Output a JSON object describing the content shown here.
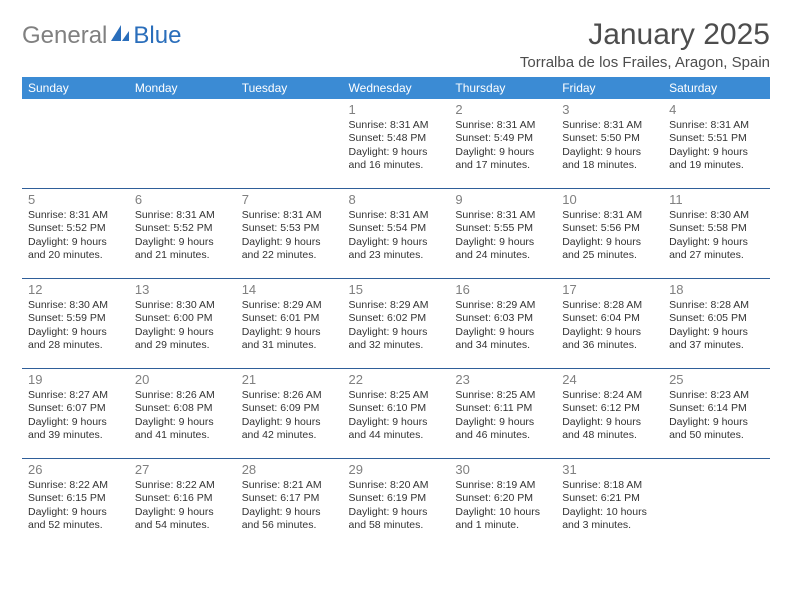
{
  "logo": {
    "text1": "General",
    "text2": "Blue"
  },
  "header": {
    "month_title": "January 2025",
    "location": "Torralba de los Frailes, Aragon, Spain"
  },
  "colors": {
    "header_bg": "#3b8bd4",
    "header_fg": "#ffffff",
    "rule": "#2f5f99",
    "daynum": "#808080",
    "body_text": "#333333",
    "logo_gray": "#808080",
    "logo_blue": "#2a6ebb"
  },
  "day_labels": [
    "Sunday",
    "Monday",
    "Tuesday",
    "Wednesday",
    "Thursday",
    "Friday",
    "Saturday"
  ],
  "weeks": [
    [
      null,
      null,
      null,
      {
        "n": "1",
        "sr": "8:31 AM",
        "ss": "5:48 PM",
        "dl": "9 hours and 16 minutes."
      },
      {
        "n": "2",
        "sr": "8:31 AM",
        "ss": "5:49 PM",
        "dl": "9 hours and 17 minutes."
      },
      {
        "n": "3",
        "sr": "8:31 AM",
        "ss": "5:50 PM",
        "dl": "9 hours and 18 minutes."
      },
      {
        "n": "4",
        "sr": "8:31 AM",
        "ss": "5:51 PM",
        "dl": "9 hours and 19 minutes."
      }
    ],
    [
      {
        "n": "5",
        "sr": "8:31 AM",
        "ss": "5:52 PM",
        "dl": "9 hours and 20 minutes."
      },
      {
        "n": "6",
        "sr": "8:31 AM",
        "ss": "5:52 PM",
        "dl": "9 hours and 21 minutes."
      },
      {
        "n": "7",
        "sr": "8:31 AM",
        "ss": "5:53 PM",
        "dl": "9 hours and 22 minutes."
      },
      {
        "n": "8",
        "sr": "8:31 AM",
        "ss": "5:54 PM",
        "dl": "9 hours and 23 minutes."
      },
      {
        "n": "9",
        "sr": "8:31 AM",
        "ss": "5:55 PM",
        "dl": "9 hours and 24 minutes."
      },
      {
        "n": "10",
        "sr": "8:31 AM",
        "ss": "5:56 PM",
        "dl": "9 hours and 25 minutes."
      },
      {
        "n": "11",
        "sr": "8:30 AM",
        "ss": "5:58 PM",
        "dl": "9 hours and 27 minutes."
      }
    ],
    [
      {
        "n": "12",
        "sr": "8:30 AM",
        "ss": "5:59 PM",
        "dl": "9 hours and 28 minutes."
      },
      {
        "n": "13",
        "sr": "8:30 AM",
        "ss": "6:00 PM",
        "dl": "9 hours and 29 minutes."
      },
      {
        "n": "14",
        "sr": "8:29 AM",
        "ss": "6:01 PM",
        "dl": "9 hours and 31 minutes."
      },
      {
        "n": "15",
        "sr": "8:29 AM",
        "ss": "6:02 PM",
        "dl": "9 hours and 32 minutes."
      },
      {
        "n": "16",
        "sr": "8:29 AM",
        "ss": "6:03 PM",
        "dl": "9 hours and 34 minutes."
      },
      {
        "n": "17",
        "sr": "8:28 AM",
        "ss": "6:04 PM",
        "dl": "9 hours and 36 minutes."
      },
      {
        "n": "18",
        "sr": "8:28 AM",
        "ss": "6:05 PM",
        "dl": "9 hours and 37 minutes."
      }
    ],
    [
      {
        "n": "19",
        "sr": "8:27 AM",
        "ss": "6:07 PM",
        "dl": "9 hours and 39 minutes."
      },
      {
        "n": "20",
        "sr": "8:26 AM",
        "ss": "6:08 PM",
        "dl": "9 hours and 41 minutes."
      },
      {
        "n": "21",
        "sr": "8:26 AM",
        "ss": "6:09 PM",
        "dl": "9 hours and 42 minutes."
      },
      {
        "n": "22",
        "sr": "8:25 AM",
        "ss": "6:10 PM",
        "dl": "9 hours and 44 minutes."
      },
      {
        "n": "23",
        "sr": "8:25 AM",
        "ss": "6:11 PM",
        "dl": "9 hours and 46 minutes."
      },
      {
        "n": "24",
        "sr": "8:24 AM",
        "ss": "6:12 PM",
        "dl": "9 hours and 48 minutes."
      },
      {
        "n": "25",
        "sr": "8:23 AM",
        "ss": "6:14 PM",
        "dl": "9 hours and 50 minutes."
      }
    ],
    [
      {
        "n": "26",
        "sr": "8:22 AM",
        "ss": "6:15 PM",
        "dl": "9 hours and 52 minutes."
      },
      {
        "n": "27",
        "sr": "8:22 AM",
        "ss": "6:16 PM",
        "dl": "9 hours and 54 minutes."
      },
      {
        "n": "28",
        "sr": "8:21 AM",
        "ss": "6:17 PM",
        "dl": "9 hours and 56 minutes."
      },
      {
        "n": "29",
        "sr": "8:20 AM",
        "ss": "6:19 PM",
        "dl": "9 hours and 58 minutes."
      },
      {
        "n": "30",
        "sr": "8:19 AM",
        "ss": "6:20 PM",
        "dl": "10 hours and 1 minute."
      },
      {
        "n": "31",
        "sr": "8:18 AM",
        "ss": "6:21 PM",
        "dl": "10 hours and 3 minutes."
      },
      null
    ]
  ],
  "labels": {
    "sunrise": "Sunrise: ",
    "sunset": "Sunset: ",
    "daylight": "Daylight: "
  }
}
